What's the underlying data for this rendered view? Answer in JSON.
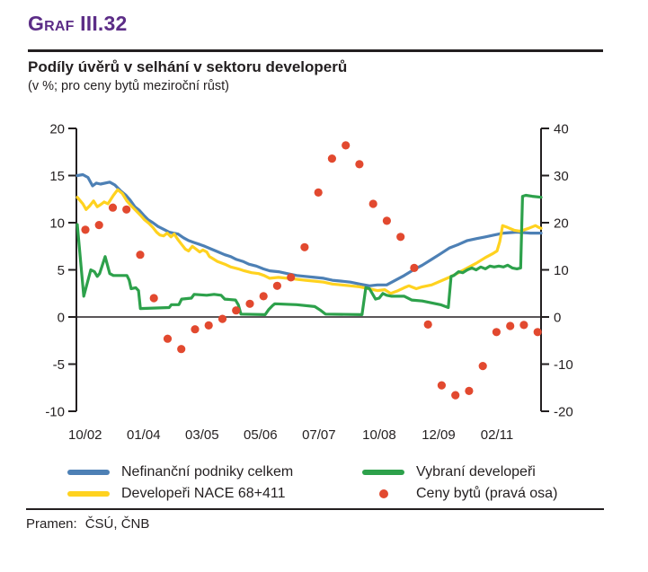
{
  "colors": {
    "accent_purple": "#5c2d87",
    "ink": "#231f20"
  },
  "header": {
    "figure_label": "Graf III.32"
  },
  "footer": {
    "source_label": "Pramen:",
    "source_value": "ČSÚ, ČNB"
  },
  "chart_data": {
    "type": "line+scatter",
    "title": "Podíly úvěrů v selhání v sektoru developerů",
    "subtitle": "(v %; pro ceny bytů meziroční růst)",
    "grid": "off",
    "legend_position": "bottom",
    "x_ticks": [
      {
        "label": "10/02",
        "f": 0.017
      },
      {
        "label": "01/04",
        "f": 0.143
      },
      {
        "label": "03/05",
        "f": 0.269
      },
      {
        "label": "05/06",
        "f": 0.395
      },
      {
        "label": "07/07",
        "f": 0.521
      },
      {
        "label": "10/08",
        "f": 0.651
      },
      {
        "label": "12/09",
        "f": 0.779
      },
      {
        "label": "02/11",
        "f": 0.905
      }
    ],
    "y_left": {
      "min": -10,
      "max": 20,
      "ticks": [
        20,
        15,
        10,
        5,
        0,
        -5,
        -10
      ]
    },
    "y_right": {
      "min": -20,
      "max": 40,
      "ticks": [
        40,
        30,
        20,
        10,
        0,
        -10,
        -20
      ]
    },
    "legend_order": [
      0,
      2,
      1,
      3
    ],
    "series": [
      {
        "name": "Nefinanční podniky celkem",
        "type": "line",
        "axis": "left",
        "color": "#4d80b5",
        "points": [
          [
            0,
            15.0
          ],
          [
            0.012,
            15.1
          ],
          [
            0.023,
            14.8
          ],
          [
            0.033,
            13.9
          ],
          [
            0.041,
            14.2
          ],
          [
            0.05,
            14.1
          ],
          [
            0.07,
            14.3
          ],
          [
            0.081,
            14.0
          ],
          [
            0.093,
            13.4
          ],
          [
            0.105,
            12.9
          ],
          [
            0.114,
            12.4
          ],
          [
            0.124,
            11.7
          ],
          [
            0.134,
            11.3
          ],
          [
            0.143,
            10.8
          ],
          [
            0.153,
            10.3
          ],
          [
            0.163,
            10.0
          ],
          [
            0.174,
            9.6
          ],
          [
            0.186,
            9.3
          ],
          [
            0.198,
            9.0
          ],
          [
            0.207,
            8.9
          ],
          [
            0.217,
            8.8
          ],
          [
            0.229,
            8.4
          ],
          [
            0.24,
            8.1
          ],
          [
            0.252,
            7.9
          ],
          [
            0.264,
            7.7
          ],
          [
            0.275,
            7.5
          ],
          [
            0.289,
            7.2
          ],
          [
            0.304,
            6.9
          ],
          [
            0.318,
            6.6
          ],
          [
            0.331,
            6.4
          ],
          [
            0.343,
            6.1
          ],
          [
            0.357,
            5.9
          ],
          [
            0.37,
            5.6
          ],
          [
            0.386,
            5.4
          ],
          [
            0.401,
            5.1
          ],
          [
            0.415,
            4.9
          ],
          [
            0.434,
            4.8
          ],
          [
            0.453,
            4.6
          ],
          [
            0.473,
            4.4
          ],
          [
            0.492,
            4.3
          ],
          [
            0.512,
            4.2
          ],
          [
            0.531,
            4.1
          ],
          [
            0.55,
            3.9
          ],
          [
            0.57,
            3.8
          ],
          [
            0.589,
            3.7
          ],
          [
            0.609,
            3.5
          ],
          [
            0.63,
            3.3
          ],
          [
            0.647,
            3.4
          ],
          [
            0.667,
            3.4
          ],
          [
            0.686,
            3.9
          ],
          [
            0.705,
            4.4
          ],
          [
            0.725,
            5.0
          ],
          [
            0.744,
            5.5
          ],
          [
            0.764,
            6.1
          ],
          [
            0.783,
            6.7
          ],
          [
            0.802,
            7.3
          ],
          [
            0.822,
            7.7
          ],
          [
            0.841,
            8.1
          ],
          [
            0.86,
            8.3
          ],
          [
            0.88,
            8.5
          ],
          [
            0.899,
            8.7
          ],
          [
            0.919,
            8.9
          ],
          [
            0.948,
            9.0
          ],
          [
            0.977,
            8.9
          ],
          [
            1,
            8.9
          ]
        ]
      },
      {
        "name": "Developeři NACE 68+411",
        "type": "line",
        "axis": "left",
        "color": "#ffd21f",
        "points": [
          [
            0,
            12.7
          ],
          [
            0.012,
            12.0
          ],
          [
            0.019,
            11.4
          ],
          [
            0.027,
            11.8
          ],
          [
            0.035,
            12.3
          ],
          [
            0.043,
            11.7
          ],
          [
            0.05,
            11.9
          ],
          [
            0.058,
            12.2
          ],
          [
            0.066,
            12.0
          ],
          [
            0.078,
            12.9
          ],
          [
            0.087,
            13.5
          ],
          [
            0.097,
            13.1
          ],
          [
            0.107,
            12.3
          ],
          [
            0.116,
            11.8
          ],
          [
            0.126,
            11.3
          ],
          [
            0.136,
            10.8
          ],
          [
            0.145,
            10.3
          ],
          [
            0.155,
            9.9
          ],
          [
            0.163,
            9.5
          ],
          [
            0.171,
            9.0
          ],
          [
            0.178,
            8.7
          ],
          [
            0.186,
            8.6
          ],
          [
            0.194,
            8.9
          ],
          [
            0.202,
            8.5
          ],
          [
            0.209,
            8.8
          ],
          [
            0.217,
            8.2
          ],
          [
            0.225,
            7.7
          ],
          [
            0.233,
            7.2
          ],
          [
            0.24,
            7.0
          ],
          [
            0.248,
            7.5
          ],
          [
            0.256,
            7.2
          ],
          [
            0.264,
            6.9
          ],
          [
            0.271,
            7.1
          ],
          [
            0.279,
            6.9
          ],
          [
            0.285,
            6.4
          ],
          [
            0.295,
            6.1
          ],
          [
            0.302,
            5.9
          ],
          [
            0.318,
            5.6
          ],
          [
            0.331,
            5.3
          ],
          [
            0.347,
            5.1
          ],
          [
            0.36,
            4.9
          ],
          [
            0.376,
            4.7
          ],
          [
            0.391,
            4.6
          ],
          [
            0.403,
            4.4
          ],
          [
            0.415,
            4.1
          ],
          [
            0.434,
            4.2
          ],
          [
            0.453,
            4.1
          ],
          [
            0.473,
            4.0
          ],
          [
            0.492,
            3.9
          ],
          [
            0.512,
            3.8
          ],
          [
            0.531,
            3.7
          ],
          [
            0.55,
            3.5
          ],
          [
            0.57,
            3.4
          ],
          [
            0.589,
            3.3
          ],
          [
            0.609,
            3.2
          ],
          [
            0.628,
            3.0
          ],
          [
            0.647,
            2.8
          ],
          [
            0.663,
            2.9
          ],
          [
            0.676,
            2.5
          ],
          [
            0.692,
            2.8
          ],
          [
            0.705,
            3.1
          ],
          [
            0.715,
            3.3
          ],
          [
            0.731,
            3.0
          ],
          [
            0.744,
            3.2
          ],
          [
            0.764,
            3.4
          ],
          [
            0.783,
            3.8
          ],
          [
            0.802,
            4.2
          ],
          [
            0.822,
            4.7
          ],
          [
            0.841,
            5.2
          ],
          [
            0.86,
            5.7
          ],
          [
            0.88,
            6.3
          ],
          [
            0.895,
            6.7
          ],
          [
            0.905,
            7.0
          ],
          [
            0.911,
            8.0
          ],
          [
            0.917,
            9.7
          ],
          [
            0.928,
            9.5
          ],
          [
            0.942,
            9.2
          ],
          [
            0.955,
            9.1
          ],
          [
            0.973,
            9.4
          ],
          [
            0.988,
            9.7
          ],
          [
            0.995,
            9.5
          ],
          [
            1,
            9.4
          ]
        ]
      },
      {
        "name": "Vybraní developeři",
        "type": "line",
        "axis": "left",
        "color": "#2da14b",
        "points": [
          [
            0,
            9.8
          ],
          [
            0.014,
            2.2
          ],
          [
            0.029,
            5.0
          ],
          [
            0.037,
            4.8
          ],
          [
            0.043,
            4.3
          ],
          [
            0.048,
            4.6
          ],
          [
            0.06,
            6.4
          ],
          [
            0.07,
            4.6
          ],
          [
            0.078,
            4.4
          ],
          [
            0.107,
            4.4
          ],
          [
            0.112,
            3.9
          ],
          [
            0.116,
            3.0
          ],
          [
            0.126,
            3.1
          ],
          [
            0.132,
            2.8
          ],
          [
            0.136,
            0.9
          ],
          [
            0.198,
            1.0
          ],
          [
            0.203,
            1.3
          ],
          [
            0.219,
            1.3
          ],
          [
            0.225,
            1.9
          ],
          [
            0.246,
            2.0
          ],
          [
            0.252,
            2.4
          ],
          [
            0.279,
            2.3
          ],
          [
            0.295,
            2.4
          ],
          [
            0.31,
            2.3
          ],
          [
            0.318,
            1.9
          ],
          [
            0.341,
            1.8
          ],
          [
            0.347,
            1.3
          ],
          [
            0.353,
            0.3
          ],
          [
            0.405,
            0.25
          ],
          [
            0.413,
            0.8
          ],
          [
            0.421,
            1.2
          ],
          [
            0.426,
            1.4
          ],
          [
            0.473,
            1.3
          ],
          [
            0.512,
            1.1
          ],
          [
            0.525,
            0.7
          ],
          [
            0.535,
            0.3
          ],
          [
            0.614,
            0.25
          ],
          [
            0.622,
            3.1
          ],
          [
            0.63,
            3.0
          ],
          [
            0.643,
            1.9
          ],
          [
            0.651,
            2.0
          ],
          [
            0.659,
            2.5
          ],
          [
            0.667,
            2.3
          ],
          [
            0.678,
            2.2
          ],
          [
            0.705,
            2.2
          ],
          [
            0.721,
            1.8
          ],
          [
            0.744,
            1.7
          ],
          [
            0.783,
            1.3
          ],
          [
            0.8,
            1.0
          ],
          [
            0.806,
            4.3
          ],
          [
            0.812,
            4.4
          ],
          [
            0.822,
            4.8
          ],
          [
            0.831,
            4.7
          ],
          [
            0.841,
            5.0
          ],
          [
            0.851,
            5.2
          ],
          [
            0.86,
            5.0
          ],
          [
            0.87,
            5.3
          ],
          [
            0.88,
            5.1
          ],
          [
            0.89,
            5.4
          ],
          [
            0.899,
            5.3
          ],
          [
            0.909,
            5.4
          ],
          [
            0.919,
            5.3
          ],
          [
            0.928,
            5.5
          ],
          [
            0.938,
            5.2
          ],
          [
            0.948,
            5.1
          ],
          [
            0.956,
            5.2
          ],
          [
            0.96,
            12.8
          ],
          [
            0.967,
            12.9
          ],
          [
            0.981,
            12.8
          ],
          [
            1,
            12.7
          ]
        ]
      },
      {
        "name": "Ceny bytů (pravá osa)",
        "type": "scatter",
        "axis": "right",
        "color": "#e2492f",
        "f0": 0.0174,
        "step": 0.02955,
        "values": [
          18.5,
          19.5,
          23.2,
          22.8,
          13.2,
          4.0,
          -4.6,
          -6.8,
          -2.6,
          -1.8,
          -0.4,
          1.4,
          2.8,
          4.4,
          6.6,
          8.4,
          14.8,
          26.4,
          33.6,
          36.4,
          32.4,
          24.0,
          20.4,
          17.0,
          10.4,
          -1.6,
          -14.5,
          -16.6,
          -15.7,
          -10.4,
          -3.2,
          -1.9,
          -1.7,
          -3.2
        ]
      }
    ]
  }
}
